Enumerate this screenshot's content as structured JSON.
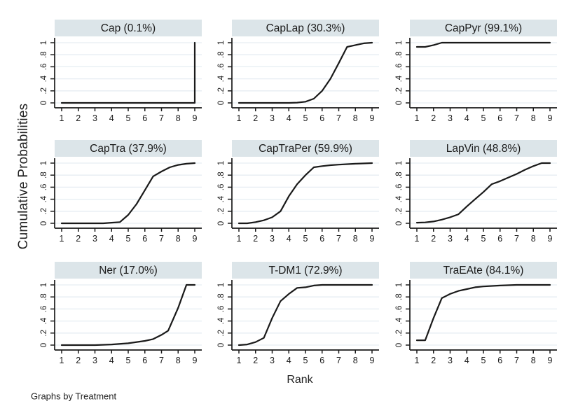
{
  "figure": {
    "ylabel": "Cumulative Probabilities",
    "xlabel": "Rank",
    "note": "Graphs by Treatment",
    "colors": {
      "background": "#ffffff",
      "title_band": "#dce5e9",
      "gridline": "#e6edf2",
      "axis": "#1a1a1a",
      "curve": "#1a1a1a",
      "text": "#1a1a1a"
    }
  },
  "chart_data": {
    "type": "line",
    "layout": {
      "rows": 3,
      "cols": 3,
      "grid": true,
      "legend": "none"
    },
    "xlabel": "Rank",
    "ylabel": "Cumulative Probabilities",
    "xlim": [
      1,
      9
    ],
    "ylim": [
      0,
      1
    ],
    "x_ticks": [
      1,
      2,
      3,
      4,
      5,
      6,
      7,
      8,
      9
    ],
    "y_ticks": [
      0,
      0.2,
      0.4,
      0.6,
      0.8,
      1
    ],
    "y_tick_labels": [
      "0",
      ".2",
      ".4",
      ".6",
      ".8",
      "1"
    ],
    "panels": [
      {
        "name": "cap",
        "title": "Cap (0.1%)",
        "sucra_pct": 0.1,
        "x": [
          1,
          2,
          3,
          4,
          5,
          6,
          7,
          8,
          9,
          9
        ],
        "y": [
          0,
          0,
          0,
          0,
          0,
          0,
          0,
          0,
          0,
          1
        ]
      },
      {
        "name": "caplap",
        "title": "CapLap (30.3%)",
        "sucra_pct": 30.3,
        "x": [
          1,
          2,
          3,
          4,
          4.5,
          5,
          5.5,
          6,
          6.5,
          7,
          7.5,
          8,
          8.5,
          9
        ],
        "y": [
          0,
          0,
          0,
          0,
          0.005,
          0.02,
          0.07,
          0.2,
          0.4,
          0.66,
          0.93,
          0.96,
          0.99,
          1
        ]
      },
      {
        "name": "cappyr",
        "title": "CapPyr (99.1%)",
        "sucra_pct": 99.1,
        "x": [
          1,
          1.5,
          2,
          2.5,
          3,
          9
        ],
        "y": [
          0.93,
          0.93,
          0.96,
          1,
          1,
          1
        ]
      },
      {
        "name": "captra",
        "title": "CapTra (37.9%)",
        "sucra_pct": 37.9,
        "x": [
          1,
          2,
          3,
          3.5,
          4,
          4.5,
          5,
          5.5,
          6,
          6.5,
          7,
          7.5,
          8,
          8.5,
          9
        ],
        "y": [
          0,
          0,
          0,
          0,
          0.01,
          0.02,
          0.14,
          0.32,
          0.55,
          0.78,
          0.86,
          0.93,
          0.97,
          0.99,
          1
        ]
      },
      {
        "name": "captraper",
        "title": "CapTraPer (59.9%)",
        "sucra_pct": 59.9,
        "x": [
          1,
          1.5,
          2,
          2.5,
          3,
          3.5,
          4,
          4.5,
          5,
          5.5,
          6,
          6.5,
          7,
          8,
          9
        ],
        "y": [
          0,
          0,
          0.02,
          0.05,
          0.1,
          0.2,
          0.45,
          0.65,
          0.8,
          0.93,
          0.95,
          0.965,
          0.975,
          0.99,
          1
        ]
      },
      {
        "name": "lapvin",
        "title": "LapVin (48.8%)",
        "sucra_pct": 48.8,
        "x": [
          1,
          1.5,
          2,
          2.5,
          3,
          3.5,
          4,
          4.5,
          5,
          5.5,
          6,
          6.5,
          7,
          7.5,
          8,
          8.5,
          9
        ],
        "y": [
          0.01,
          0.015,
          0.03,
          0.06,
          0.1,
          0.15,
          0.28,
          0.4,
          0.52,
          0.65,
          0.7,
          0.76,
          0.82,
          0.89,
          0.95,
          1,
          1
        ]
      },
      {
        "name": "ner",
        "title": "Ner (17.0%)",
        "sucra_pct": 17.0,
        "x": [
          1,
          2,
          3,
          4,
          5,
          6,
          6.5,
          7,
          7.4,
          8,
          8.5,
          9
        ],
        "y": [
          0,
          0,
          0,
          0.01,
          0.03,
          0.07,
          0.1,
          0.17,
          0.24,
          0.62,
          1,
          1
        ]
      },
      {
        "name": "t-dm1",
        "title": "T-DM1 (72.9%)",
        "sucra_pct": 72.9,
        "x": [
          1,
          1.5,
          2,
          2.5,
          3,
          3.5,
          4,
          4.5,
          5,
          5.5,
          6,
          9
        ],
        "y": [
          0,
          0.01,
          0.05,
          0.12,
          0.45,
          0.73,
          0.85,
          0.95,
          0.96,
          0.99,
          1,
          1
        ]
      },
      {
        "name": "traeate",
        "title": "TraEAte (84.1%)",
        "sucra_pct": 84.1,
        "x": [
          1,
          1.5,
          2,
          2.5,
          3,
          3.5,
          4,
          4.5,
          5,
          6,
          7,
          9
        ],
        "y": [
          0.08,
          0.08,
          0.45,
          0.78,
          0.85,
          0.9,
          0.93,
          0.96,
          0.975,
          0.99,
          1,
          1
        ]
      }
    ]
  }
}
